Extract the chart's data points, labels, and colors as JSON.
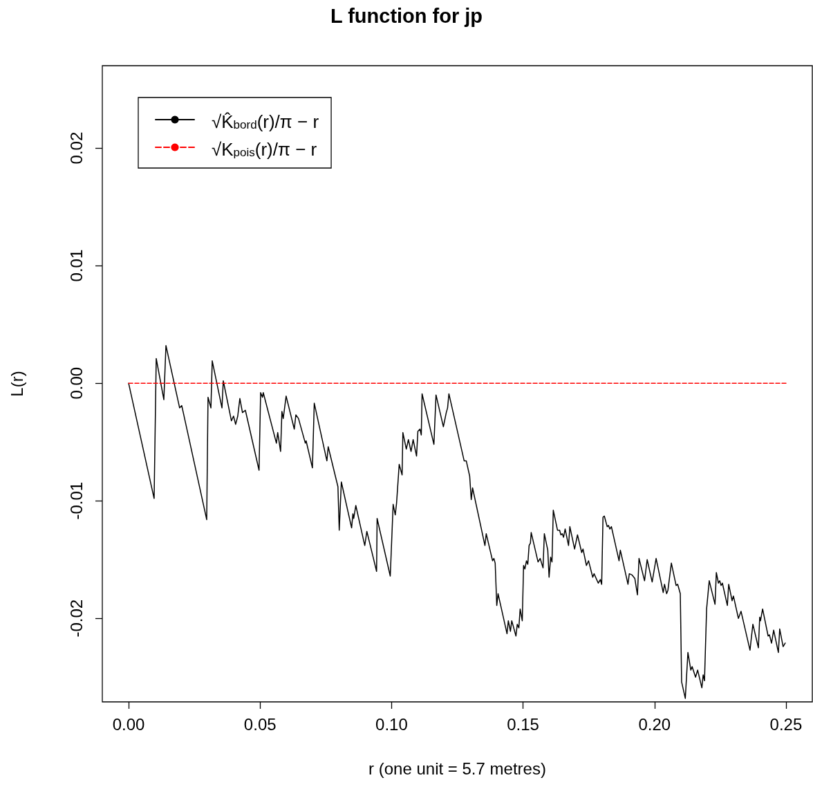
{
  "chart_data": {
    "type": "line",
    "title": "L function for jp",
    "xlabel": "r (one unit = 5.7 metres)",
    "ylabel": "L(r)",
    "xlim": [
      -0.01,
      0.26
    ],
    "ylim": [
      -0.0271,
      0.027
    ],
    "xticks": [
      {
        "value": 0,
        "label": "0.00"
      },
      {
        "value": 0.05,
        "label": "0.05"
      },
      {
        "value": 0.1,
        "label": "0.10"
      },
      {
        "value": 0.15,
        "label": "0.15"
      },
      {
        "value": 0.2,
        "label": "0.20"
      },
      {
        "value": 0.25,
        "label": "0.25"
      }
    ],
    "yticks": [
      {
        "value": -0.02,
        "label": "-0.02"
      },
      {
        "value": -0.01,
        "label": "-0.01"
      },
      {
        "value": 0,
        "label": "0.00"
      },
      {
        "value": 0.01,
        "label": "0.01"
      },
      {
        "value": 0.02,
        "label": "0.02"
      }
    ],
    "legend": "top left",
    "series": [
      {
        "name": "√K̂$_{bord}$(r)/π − r",
        "color": "#000000",
        "line_style": "solid",
        "x": [
          0,
          0.0097,
          0.0105,
          0.0134,
          0.0142,
          0.0194,
          0.0202,
          0.0297,
          0.0302,
          0.0313,
          0.0318,
          0.0355,
          0.036,
          0.0391,
          0.0399,
          0.0407,
          0.0415,
          0.0423,
          0.0433,
          0.0444,
          0.0496,
          0.0502,
          0.0509,
          0.0512,
          0.0562,
          0.0567,
          0.0578,
          0.0583,
          0.0588,
          0.0599,
          0.063,
          0.0636,
          0.0646,
          0.0672,
          0.0675,
          0.0699,
          0.0706,
          0.0754,
          0.0759,
          0.0796,
          0.0801,
          0.0809,
          0.0848,
          0.0853,
          0.0856,
          0.0864,
          0.0898,
          0.0906,
          0.0943,
          0.0945,
          0.0995,
          0.1006,
          0.1014,
          0.1019,
          0.1029,
          0.104,
          0.1043,
          0.1056,
          0.1064,
          0.1074,
          0.1082,
          0.1095,
          0.11,
          0.1108,
          0.1113,
          0.1116,
          0.1161,
          0.1169,
          0.1197,
          0.1208,
          0.1213,
          0.1218,
          0.1276,
          0.1284,
          0.1297,
          0.1303,
          0.1308,
          0.1355,
          0.136,
          0.1384,
          0.1389,
          0.1394,
          0.14,
          0.1405,
          0.1439,
          0.1444,
          0.1452,
          0.1457,
          0.1473,
          0.1478,
          0.1484,
          0.1489,
          0.1497,
          0.1502,
          0.1507,
          0.1513,
          0.1518,
          0.1523,
          0.1528,
          0.1531,
          0.1557,
          0.1565,
          0.1576,
          0.1581,
          0.1594,
          0.1599,
          0.1605,
          0.161,
          0.1615,
          0.1631,
          0.1639,
          0.1644,
          0.1649,
          0.1654,
          0.166,
          0.1673,
          0.1678,
          0.1696,
          0.1707,
          0.1723,
          0.1728,
          0.1741,
          0.1749,
          0.1765,
          0.177,
          0.1786,
          0.1794,
          0.1799,
          0.1804,
          0.1809,
          0.182,
          0.1825,
          0.183,
          0.1836,
          0.1865,
          0.187,
          0.1899,
          0.1904,
          0.1914,
          0.1925,
          0.1935,
          0.1941,
          0.1962,
          0.1972,
          0.1991,
          0.2006,
          0.2033,
          0.2038,
          0.2046,
          0.2051,
          0.2064,
          0.2082,
          0.2088,
          0.2098,
          0.2103,
          0.2117,
          0.2127,
          0.2138,
          0.2143,
          0.2156,
          0.2164,
          0.218,
          0.2185,
          0.219,
          0.2198,
          0.2208,
          0.223,
          0.2235,
          0.2243,
          0.2248,
          0.2253,
          0.2258,
          0.2277,
          0.2282,
          0.2295,
          0.23,
          0.2319,
          0.2329,
          0.2363,
          0.2374,
          0.2395,
          0.24,
          0.2403,
          0.2411,
          0.2432,
          0.2437,
          0.2445,
          0.2453,
          0.2471,
          0.2476,
          0.2489,
          0.2497
        ],
        "values": [
          0,
          -0.0098,
          0.0021,
          -0.0014,
          0.0032,
          -0.0021,
          -0.0019,
          -0.0116,
          -0.0012,
          -0.0021,
          0.0019,
          -0.0021,
          0.0002,
          -0.0032,
          -0.0028,
          -0.0035,
          -0.0028,
          -0.0013,
          -0.0025,
          -0.0023,
          -0.0074,
          -0.0008,
          -0.0012,
          -0.0008,
          -0.0051,
          -0.0042,
          -0.0058,
          -0.0024,
          -0.003,
          -0.0011,
          -0.0039,
          -0.0027,
          -0.003,
          -0.0051,
          -0.0049,
          -0.0072,
          -0.0017,
          -0.0066,
          -0.0054,
          -0.0088,
          -0.0125,
          -0.0084,
          -0.0123,
          -0.0111,
          -0.0115,
          -0.0104,
          -0.0138,
          -0.0126,
          -0.016,
          -0.0115,
          -0.0164,
          -0.0103,
          -0.0112,
          -0.0102,
          -0.0069,
          -0.0078,
          -0.0042,
          -0.0056,
          -0.0048,
          -0.0058,
          -0.0048,
          -0.0062,
          -0.0041,
          -0.0039,
          -0.0044,
          -0.0009,
          -0.0052,
          -0.001,
          -0.0037,
          -0.0025,
          -0.0021,
          -0.0009,
          -0.0066,
          -0.0066,
          -0.0079,
          -0.0099,
          -0.0089,
          -0.0138,
          -0.0128,
          -0.0151,
          -0.0149,
          -0.0153,
          -0.0189,
          -0.0179,
          -0.0213,
          -0.0202,
          -0.0211,
          -0.0202,
          -0.0215,
          -0.0205,
          -0.0208,
          -0.0192,
          -0.0202,
          -0.0155,
          -0.0158,
          -0.0151,
          -0.0154,
          -0.0138,
          -0.0136,
          -0.0127,
          -0.0152,
          -0.0149,
          -0.0157,
          -0.0128,
          -0.0142,
          -0.0165,
          -0.0148,
          -0.0152,
          -0.0108,
          -0.0125,
          -0.0125,
          -0.0129,
          -0.0128,
          -0.0131,
          -0.0124,
          -0.0138,
          -0.0122,
          -0.0141,
          -0.0129,
          -0.0144,
          -0.0141,
          -0.0155,
          -0.0151,
          -0.0165,
          -0.0162,
          -0.017,
          -0.0167,
          -0.0171,
          -0.0114,
          -0.0113,
          -0.0122,
          -0.0121,
          -0.0124,
          -0.0122,
          -0.0151,
          -0.0142,
          -0.0171,
          -0.0162,
          -0.0163,
          -0.0166,
          -0.018,
          -0.0149,
          -0.0168,
          -0.015,
          -0.0169,
          -0.0149,
          -0.0178,
          -0.0171,
          -0.0179,
          -0.0176,
          -0.0153,
          -0.0172,
          -0.0171,
          -0.0179,
          -0.0254,
          -0.0268,
          -0.0229,
          -0.0244,
          -0.0241,
          -0.025,
          -0.0244,
          -0.0259,
          -0.0248,
          -0.0253,
          -0.0192,
          -0.0168,
          -0.0188,
          -0.0161,
          -0.017,
          -0.0168,
          -0.0172,
          -0.017,
          -0.0189,
          -0.0171,
          -0.0185,
          -0.0181,
          -0.02,
          -0.0194,
          -0.0227,
          -0.0205,
          -0.0225,
          -0.0199,
          -0.0202,
          -0.0192,
          -0.0215,
          -0.0214,
          -0.0221,
          -0.021,
          -0.0229,
          -0.0209,
          -0.0224,
          -0.0221
        ]
      },
      {
        "name": "√K$_{pois}$(r)/π − r",
        "color": "#ff0000",
        "line_style": "dashed",
        "x": [
          0,
          0.25
        ],
        "values": [
          0,
          0
        ]
      }
    ]
  }
}
